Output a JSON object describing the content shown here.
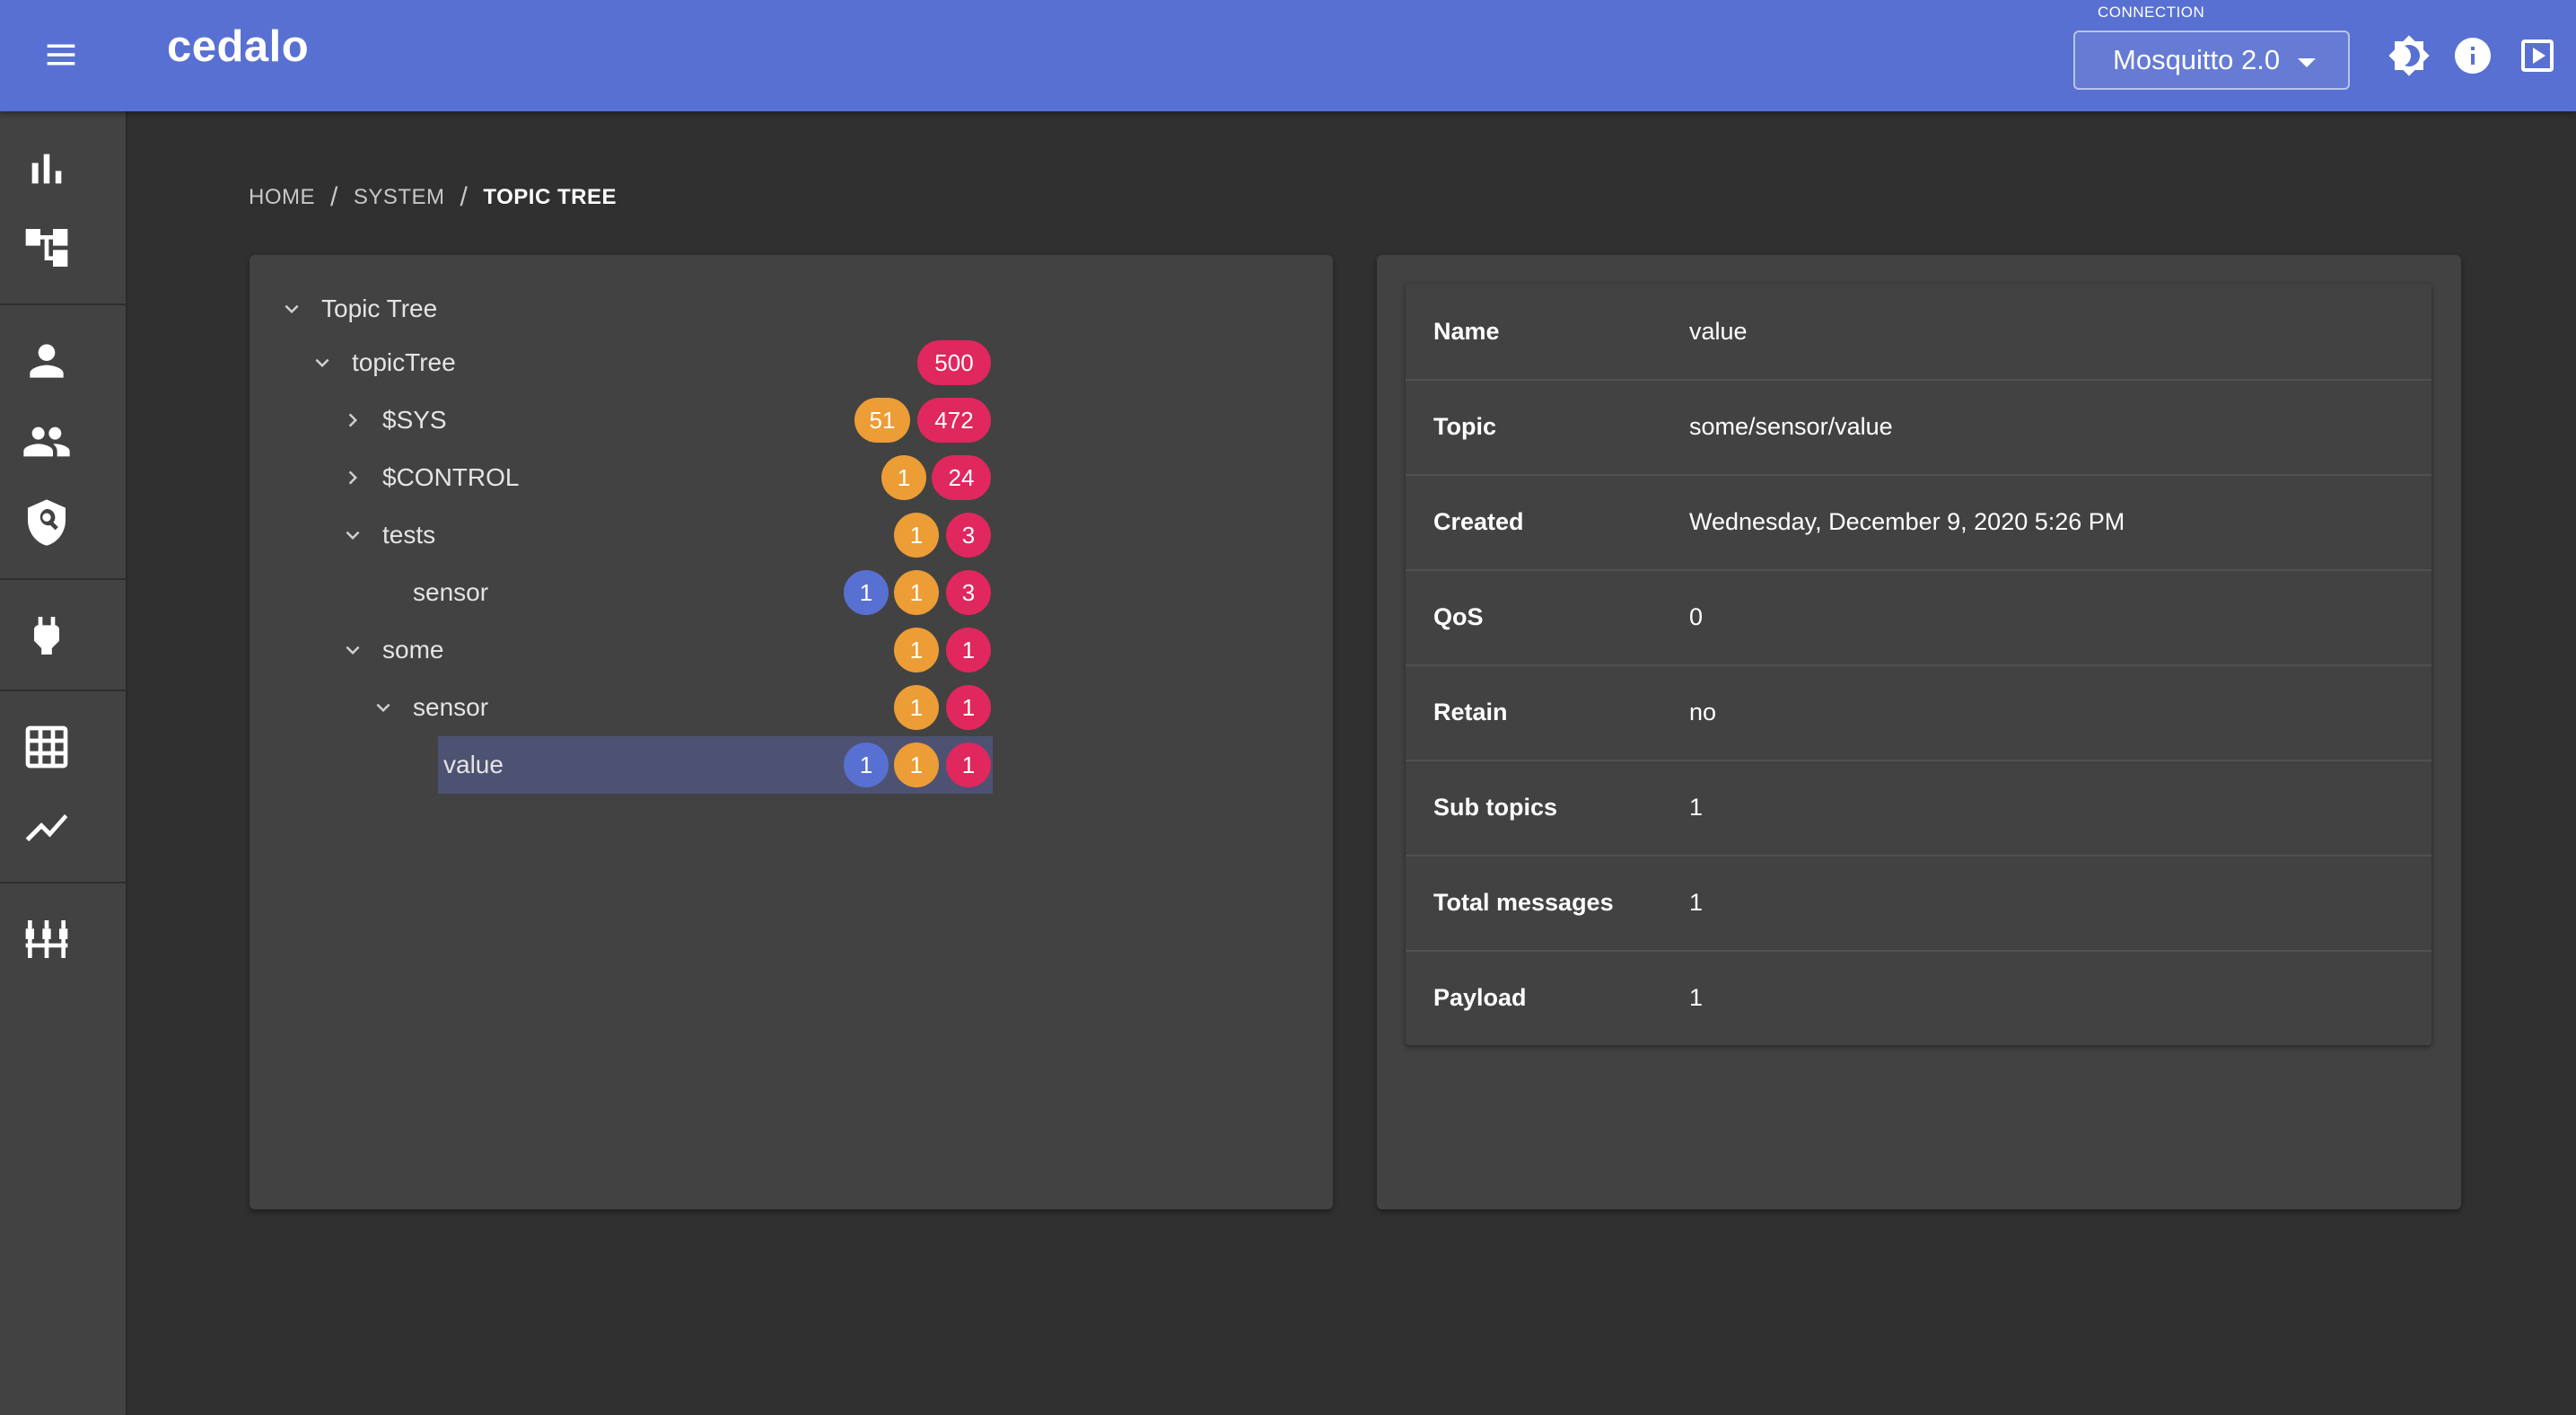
{
  "appbar": {
    "brand": "cedalo",
    "connection_label": "CONNECTION",
    "connection_value": "Mosquitto 2.0"
  },
  "breadcrumb": [
    "HOME",
    "SYSTEM",
    "TOPIC TREE"
  ],
  "tree": {
    "root_label": "Topic Tree",
    "nodes": [
      {
        "label": "topicTree",
        "badges": [
          "500"
        ]
      },
      {
        "label": "$SYS",
        "badges": [
          "51",
          "472"
        ]
      },
      {
        "label": "$CONTROL",
        "badges": [
          "1",
          "24"
        ]
      },
      {
        "label": "tests",
        "badges": [
          "1",
          "3"
        ]
      },
      {
        "label": "sensor",
        "badges": [
          "1",
          "1",
          "3"
        ]
      },
      {
        "label": "some",
        "badges": [
          "1",
          "1"
        ]
      },
      {
        "label": "sensor",
        "badges": [
          "1",
          "1"
        ]
      },
      {
        "label": "value",
        "badges": [
          "1",
          "1",
          "1"
        ],
        "selected": true
      }
    ]
  },
  "details": [
    {
      "key": "Name",
      "value": "value"
    },
    {
      "key": "Topic",
      "value": "some/sensor/value"
    },
    {
      "key": "Created",
      "value": "Wednesday, December 9, 2020 5:26 PM"
    },
    {
      "key": "QoS",
      "value": "0"
    },
    {
      "key": "Retain",
      "value": "no"
    },
    {
      "key": "Sub topics",
      "value": "1"
    },
    {
      "key": "Total messages",
      "value": "1"
    },
    {
      "key": "Payload",
      "value": "1"
    }
  ],
  "colors": {
    "primary": "#5870d1",
    "badge_blue": "#5870d1",
    "badge_orange": "#ec9d35",
    "badge_red": "#e0275e",
    "background": "#303030",
    "card": "#424242"
  }
}
